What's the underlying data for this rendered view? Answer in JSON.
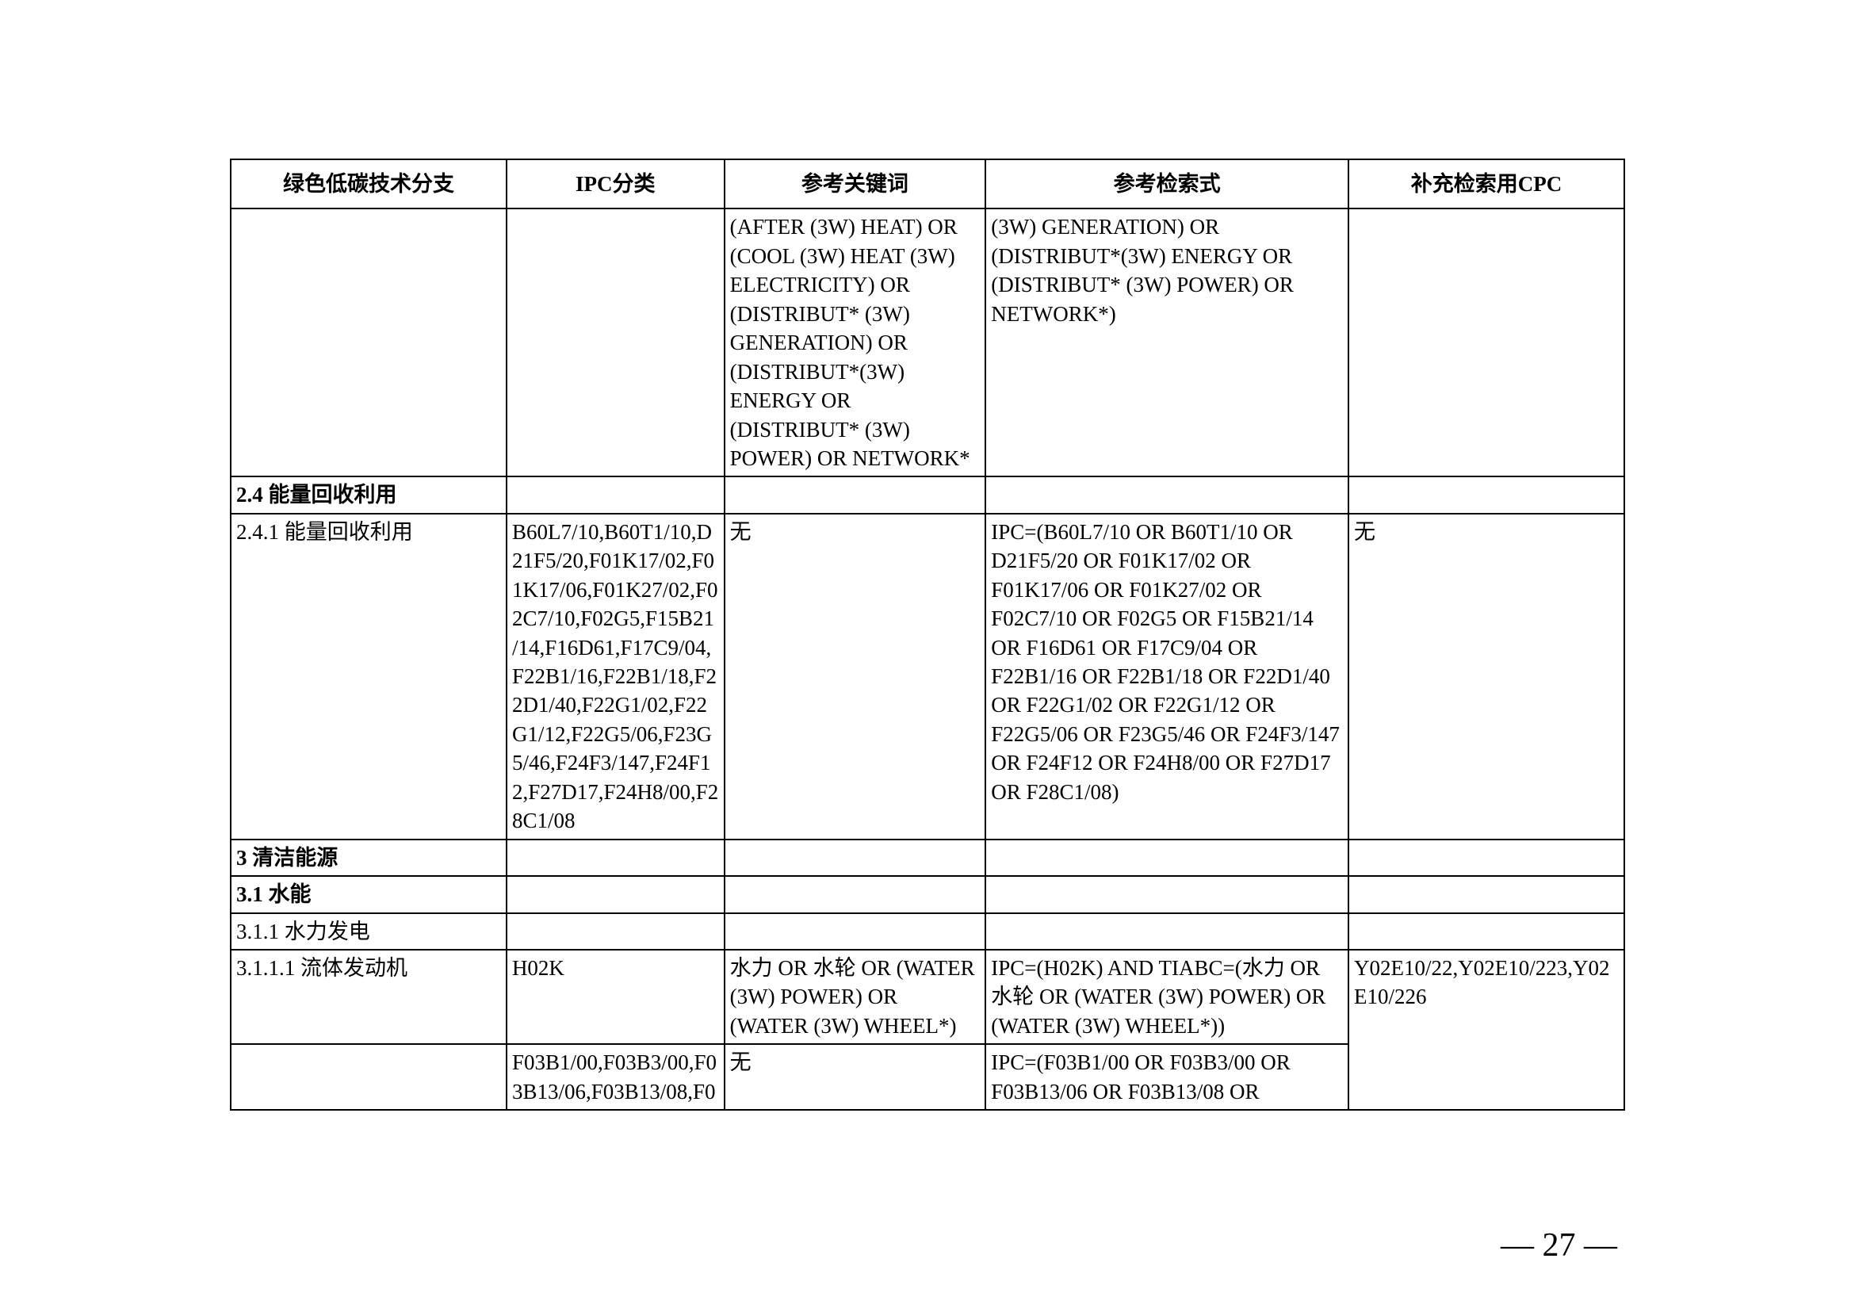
{
  "headers": {
    "c1": "绿色低碳技术分支",
    "c2": "IPC分类",
    "c3": "参考关键词",
    "c4": "参考检索式",
    "c5": "补充检索用CPC"
  },
  "rows": [
    {
      "c1": "",
      "c2": "",
      "c3": "(AFTER (3W) HEAT) OR (COOL (3W) HEAT (3W) ELECTRICITY) OR (DISTRIBUT* (3W) GENERATION) OR (DISTRIBUT*(3W) ENERGY OR (DISTRIBUT* (3W) POWER) OR NETWORK*",
      "c4": "(3W) GENERATION) OR (DISTRIBUT*(3W) ENERGY OR (DISTRIBUT* (3W) POWER) OR NETWORK*)",
      "c5": "",
      "bold": false
    },
    {
      "c1": "2.4 能量回收利用",
      "c2": "",
      "c3": "",
      "c4": "",
      "c5": "",
      "bold": true
    },
    {
      "c1": "2.4.1 能量回收利用",
      "c2": "B60L7/10,B60T1/10,D21F5/20,F01K17/02,F01K17/06,F01K27/02,F02C7/10,F02G5,F15B21/14,F16D61,F17C9/04,F22B1/16,F22B1/18,F22D1/40,F22G1/02,F22G1/12,F22G5/06,F23G5/46,F24F3/147,F24F12,F27D17,F24H8/00,F28C1/08",
      "c3": "无",
      "c4": "IPC=(B60L7/10 OR B60T1/10 OR D21F5/20 OR F01K17/02 OR F01K17/06 OR F01K27/02 OR F02C7/10 OR F02G5 OR F15B21/14 OR F16D61 OR F17C9/04 OR F22B1/16 OR F22B1/18 OR F22D1/40 OR F22G1/02 OR F22G1/12 OR F22G5/06 OR F23G5/46 OR F24F3/147 OR F24F12 OR F24H8/00 OR F27D17 OR F28C1/08)",
      "c5": "无",
      "bold": false
    },
    {
      "c1": "3 清洁能源",
      "c2": "",
      "c3": "",
      "c4": "",
      "c5": "",
      "bold": true
    },
    {
      "c1": "3.1 水能",
      "c2": "",
      "c3": "",
      "c4": "",
      "c5": "",
      "bold": true
    },
    {
      "c1": "3.1.1 水力发电",
      "c2": "",
      "c3": "",
      "c4": "",
      "c5": "",
      "bold": false
    },
    {
      "c1": "3.1.1.1 流体发动机",
      "c2": "H02K",
      "c3": "水力 OR 水轮 OR (WATER (3W) POWER) OR (WATER (3W) WHEEL*)",
      "c4": "IPC=(H02K) AND TIABC=(水力 OR 水轮 OR (WATER (3W) POWER) OR (WATER (3W) WHEEL*))",
      "c5": "Y02E10/22,Y02E10/223,Y02E10/226",
      "bold": false,
      "c5_rowspan": 2
    },
    {
      "c1": "",
      "c2": "F03B1/00,F03B3/00,F03B13/06,F03B13/08,F0",
      "c3": "无",
      "c4": "IPC=(F03B1/00 OR F03B3/00 OR F03B13/06 OR F03B13/08 OR",
      "bold": false,
      "skip_c5": true
    }
  ],
  "page_number": "— 27 —",
  "style": {
    "font_size_cell": 27,
    "font_size_page": 42,
    "border_color": "#000000",
    "background": "#ffffff"
  }
}
